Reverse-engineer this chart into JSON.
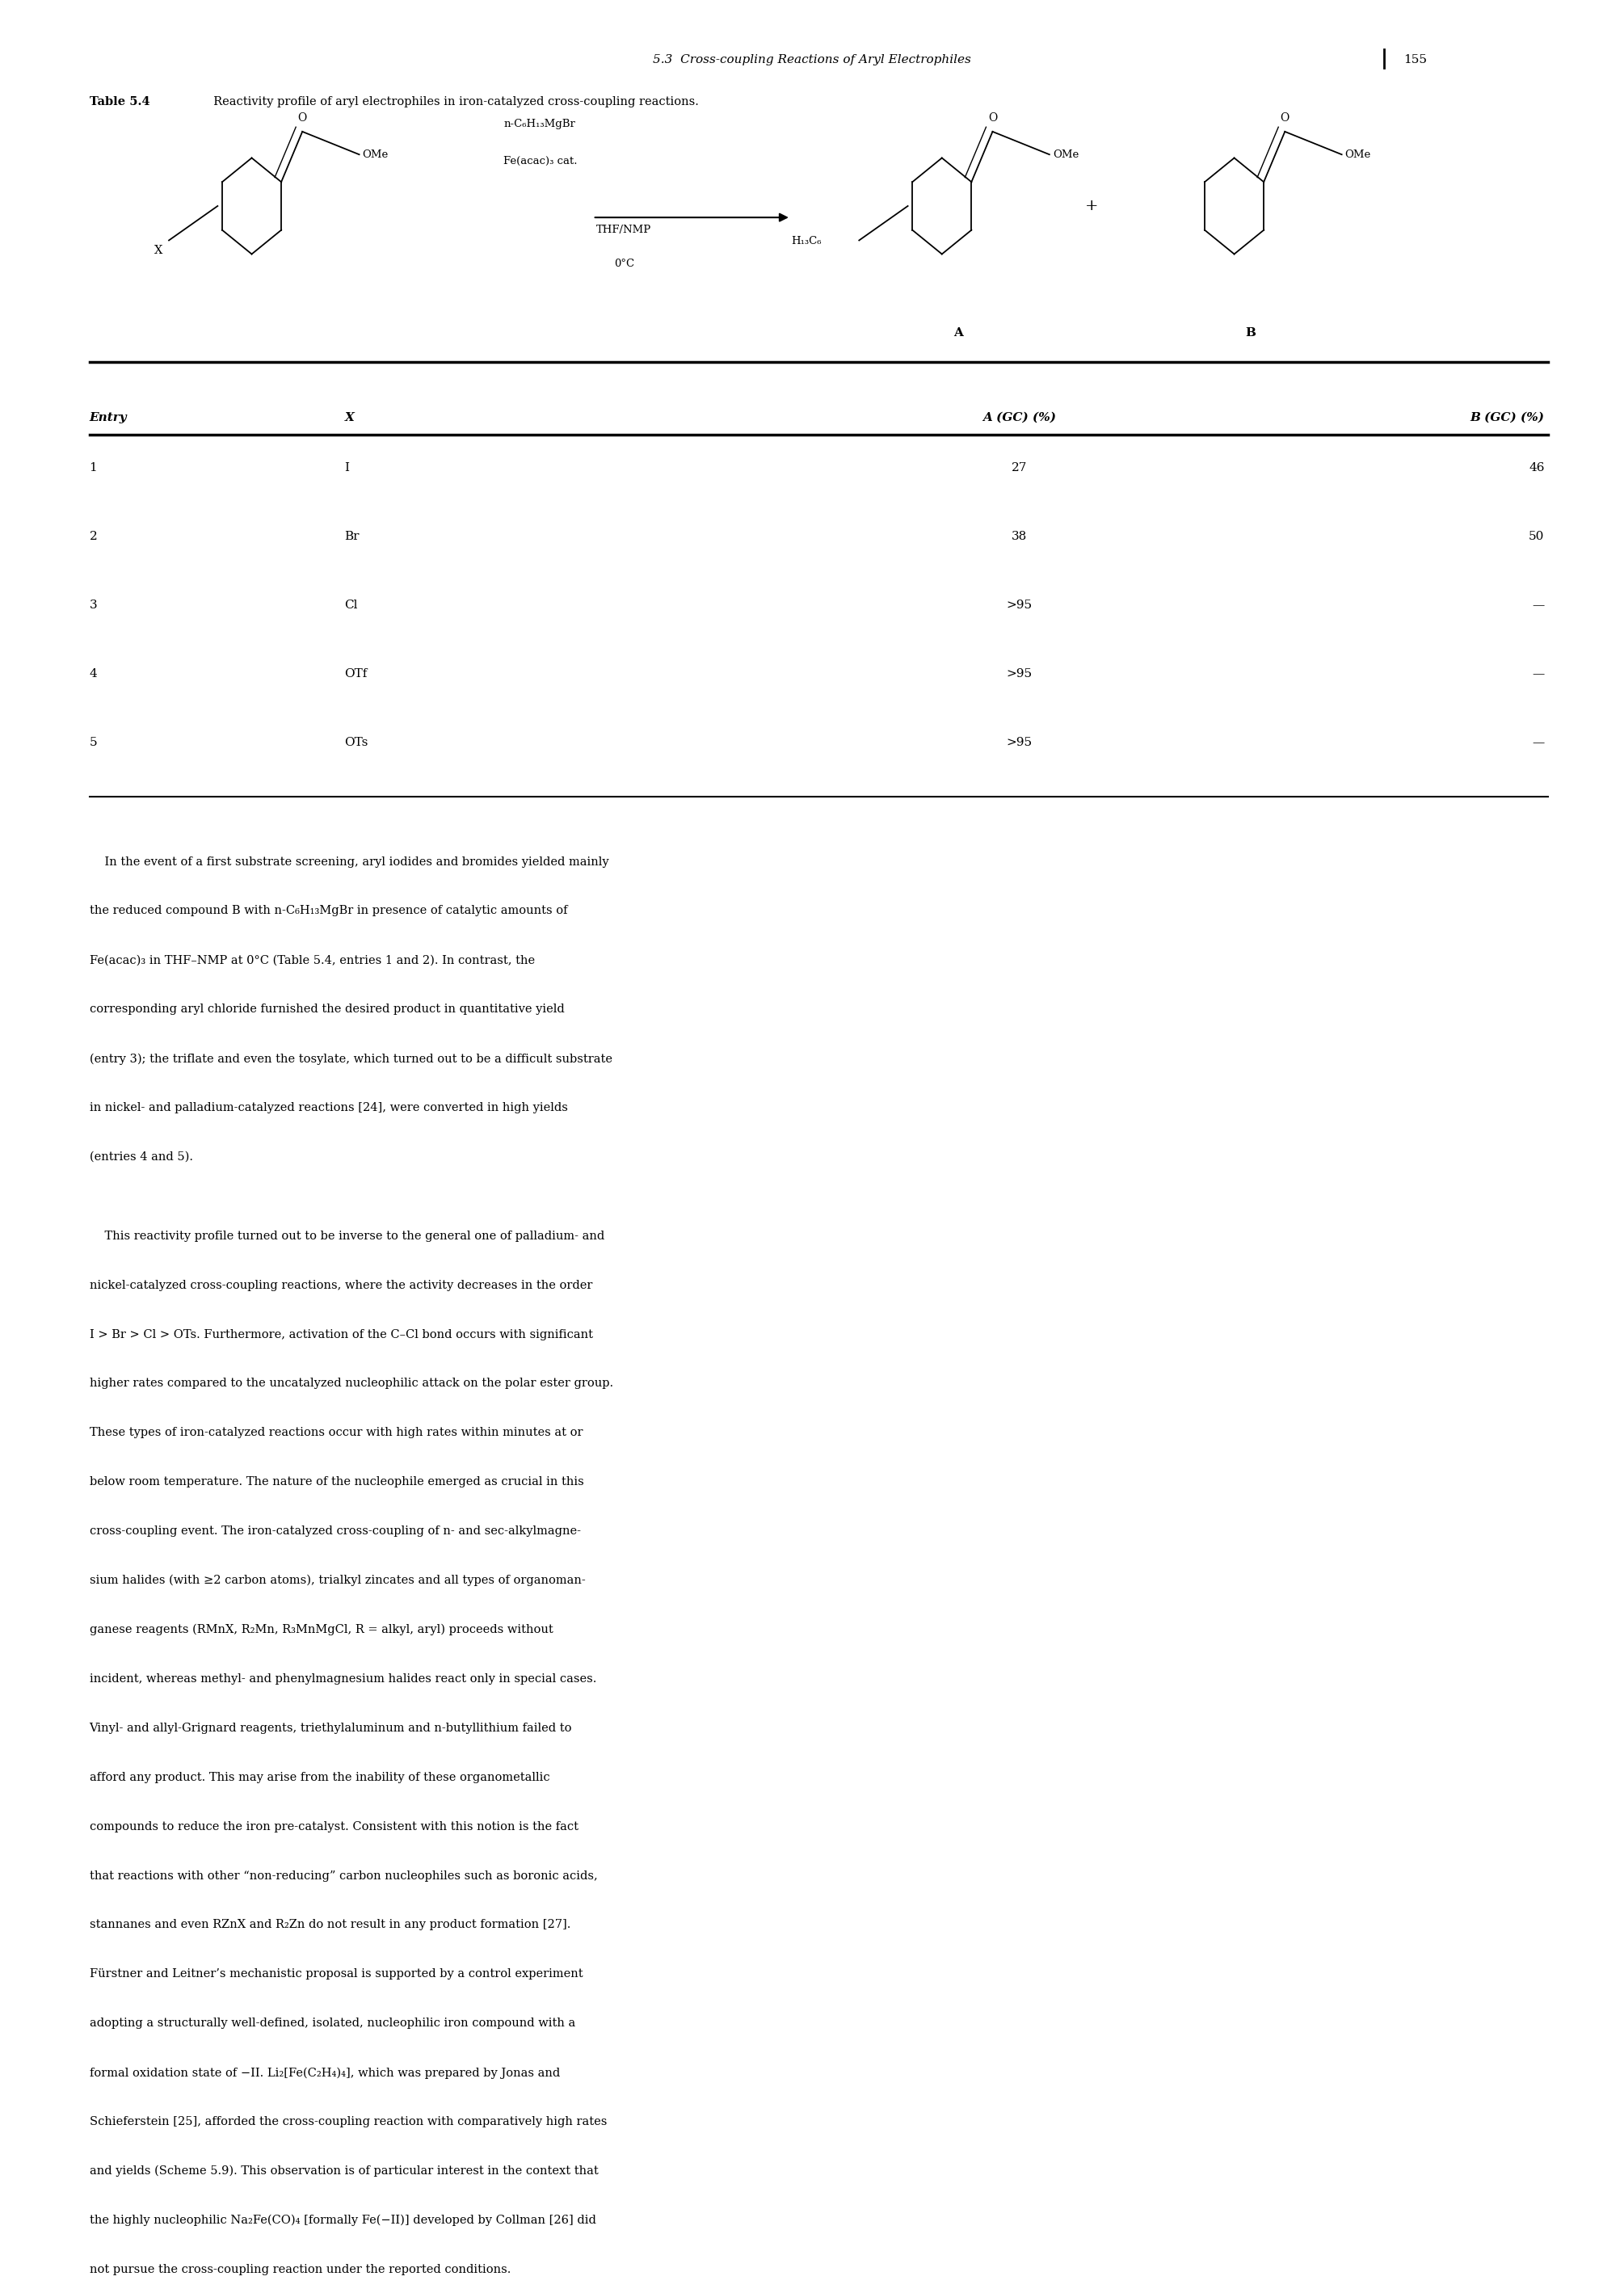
{
  "page_header": "5.3  Cross-coupling Reactions of Aryl Electrophiles",
  "page_number": "155",
  "table_caption_bold": "Table 5.4",
  "table_caption_rest": "  Reactivity profile of aryl electrophiles in iron-catalyzed cross-coupling reactions.",
  "table_headers": [
    "Entry",
    "X",
    "A (GC) (%)",
    "B (GC) (%)"
  ],
  "table_rows": [
    [
      "1",
      "I",
      "27",
      "46"
    ],
    [
      "2",
      "Br",
      "38",
      "50"
    ],
    [
      "3",
      "Cl",
      ">95",
      "—"
    ],
    [
      "4",
      "OTf",
      ">95",
      "—"
    ],
    [
      "5",
      "OTs",
      ">95",
      "—"
    ]
  ],
  "para1_lines": [
    "    In the event of a first substrate screening, aryl iodides and bromides yielded mainly",
    "the reduced compound B with n-C₆H₁₃MgBr in presence of catalytic amounts of",
    "Fe(acac)₃ in THF–NMP at 0°C (Table 5.4, entries 1 and 2). In contrast, the",
    "corresponding aryl chloride furnished the desired product in quantitative yield",
    "(entry 3); the triflate and even the tosylate, which turned out to be a difficult substrate",
    "in nickel- and palladium-catalyzed reactions [24], were converted in high yields",
    "(entries 4 and 5)."
  ],
  "para2_lines": [
    "    This reactivity profile turned out to be inverse to the general one of palladium- and",
    "nickel-catalyzed cross-coupling reactions, where the activity decreases in the order",
    "I > Br > Cl > OTs. Furthermore, activation of the C–Cl bond occurs with significant",
    "higher rates compared to the uncatalyzed nucleophilic attack on the polar ester group.",
    "These types of iron-catalyzed reactions occur with high rates within minutes at or",
    "below room temperature. The nature of the nucleophile emerged as crucial in this",
    "cross-coupling event. The iron-catalyzed cross-coupling of n- and sec-alkylmagne-",
    "sium halides (with ≥2 carbon atoms), trialkyl zincates and all types of organoman-",
    "ganese reagents (RMnX, R₂Mn, R₃MnMgCl, R = alkyl, aryl) proceeds without",
    "incident, whereas methyl- and phenylmagnesium halides react only in special cases.",
    "Vinyl- and allyl-Grignard reagents, triethylaluminum and n-butyllithium failed to",
    "afford any product. This may arise from the inability of these organometallic",
    "compounds to reduce the iron pre-catalyst. Consistent with this notion is the fact",
    "that reactions with other “non-reducing” carbon nucleophiles such as boronic acids,",
    "stannanes and even RZnX and R₂Zn do not result in any product formation [27].",
    "Fürstner and Leitner’s mechanistic proposal is supported by a control experiment",
    "adopting a structurally well-defined, isolated, nucleophilic iron compound with a",
    "formal oxidation state of −II. Li₂[Fe(C₂H₄)₄], which was prepared by Jonas and",
    "Schieferstein [25], afforded the cross-coupling reaction with comparatively high rates",
    "and yields (Scheme 5.9). This observation is of particular interest in the context that",
    "the highly nucleophilic Na₂Fe(CO)₄ [formally Fe(−II)] developed by Collman [26] did",
    "not pursue the cross-coupling reaction under the reported conditions."
  ],
  "bg_color": "#ffffff",
  "text_color": "#000000"
}
